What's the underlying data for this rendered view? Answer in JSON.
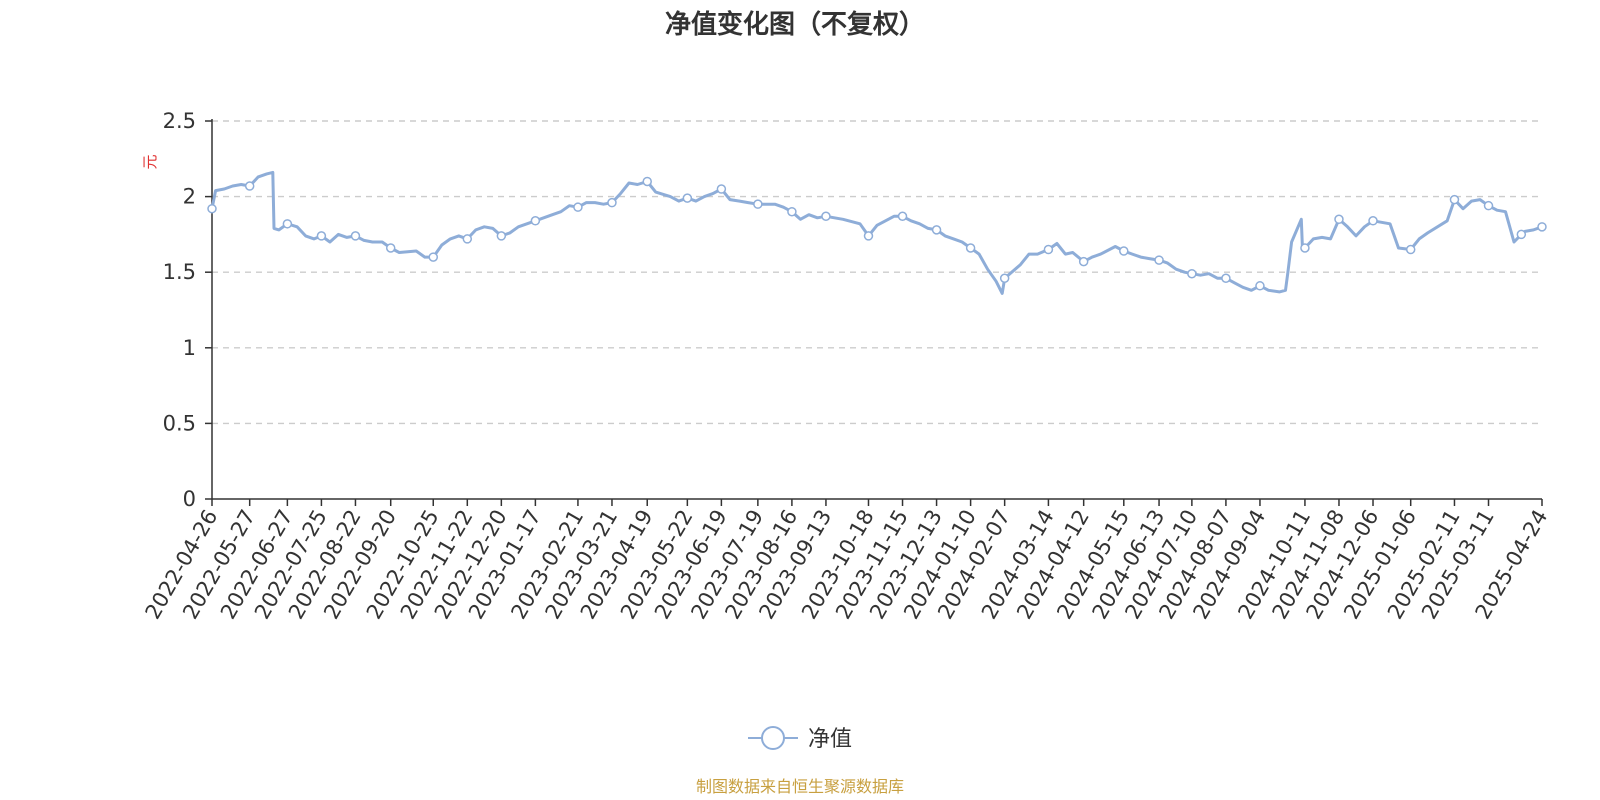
{
  "chart_data": {
    "type": "line",
    "title": "净值变化图（不复权）",
    "ylabel": "元",
    "ylim": [
      0,
      2.5
    ],
    "yticks": [
      0,
      0.5,
      1,
      1.5,
      2,
      2.5
    ],
    "ytick_labels": [
      "0",
      "0.5",
      "1",
      "1.5",
      "2",
      "2.5"
    ],
    "xlim": [
      "2022-04-26",
      "2025-04-24"
    ],
    "xticks": [
      "2022-04-26",
      "2022-05-27",
      "2022-06-27",
      "2022-07-25",
      "2022-08-22",
      "2022-09-20",
      "2022-10-25",
      "2022-11-22",
      "2022-12-20",
      "2023-01-17",
      "2023-02-21",
      "2023-03-21",
      "2023-04-19",
      "2023-05-22",
      "2023-06-19",
      "2023-07-19",
      "2023-08-16",
      "2023-09-13",
      "2023-10-18",
      "2023-11-15",
      "2023-12-13",
      "2024-01-10",
      "2024-02-07",
      "2024-03-14",
      "2024-04-12",
      "2024-05-15",
      "2024-06-13",
      "2024-07-10",
      "2024-08-07",
      "2024-09-04",
      "2024-10-11",
      "2024-11-08",
      "2024-12-06",
      "2025-01-06",
      "2025-02-11",
      "2025-03-11",
      "2025-04-24"
    ],
    "grid": true,
    "legend_position": "bottom-center",
    "series": [
      {
        "name": "净值",
        "color": "#8eadd8",
        "x": [
          "2022-04-26",
          "2022-04-29",
          "2022-05-06",
          "2022-05-13",
          "2022-05-20",
          "2022-05-27",
          "2022-06-03",
          "2022-06-10",
          "2022-06-15",
          "2022-06-16",
          "2022-06-20",
          "2022-06-27",
          "2022-07-05",
          "2022-07-12",
          "2022-07-19",
          "2022-07-25",
          "2022-08-01",
          "2022-08-08",
          "2022-08-15",
          "2022-08-22",
          "2022-08-29",
          "2022-09-05",
          "2022-09-13",
          "2022-09-20",
          "2022-09-27",
          "2022-10-11",
          "2022-10-18",
          "2022-10-25",
          "2022-11-01",
          "2022-11-08",
          "2022-11-15",
          "2022-11-22",
          "2022-11-29",
          "2022-12-06",
          "2022-12-13",
          "2022-12-20",
          "2022-12-27",
          "2023-01-03",
          "2023-01-10",
          "2023-01-17",
          "2023-01-31",
          "2023-02-07",
          "2023-02-14",
          "2023-02-21",
          "2023-02-28",
          "2023-03-07",
          "2023-03-14",
          "2023-03-21",
          "2023-03-28",
          "2023-04-04",
          "2023-04-11",
          "2023-04-19",
          "2023-04-26",
          "2023-05-08",
          "2023-05-15",
          "2023-05-22",
          "2023-05-29",
          "2023-06-05",
          "2023-06-12",
          "2023-06-19",
          "2023-06-26",
          "2023-07-04",
          "2023-07-11",
          "2023-07-19",
          "2023-07-26",
          "2023-08-02",
          "2023-08-09",
          "2023-08-16",
          "2023-08-23",
          "2023-08-30",
          "2023-09-06",
          "2023-09-13",
          "2023-09-20",
          "2023-09-27",
          "2023-10-11",
          "2023-10-18",
          "2023-10-25",
          "2023-11-01",
          "2023-11-08",
          "2023-11-15",
          "2023-11-22",
          "2023-11-29",
          "2023-12-06",
          "2023-12-13",
          "2023-12-20",
          "2023-12-27",
          "2024-01-03",
          "2024-01-10",
          "2024-01-17",
          "2024-01-24",
          "2024-01-31",
          "2024-02-05",
          "2024-02-07",
          "2024-02-20",
          "2024-02-27",
          "2024-03-05",
          "2024-03-14",
          "2024-03-21",
          "2024-03-28",
          "2024-04-03",
          "2024-04-12",
          "2024-04-19",
          "2024-04-26",
          "2024-05-08",
          "2024-05-15",
          "2024-05-22",
          "2024-05-29",
          "2024-06-05",
          "2024-06-13",
          "2024-06-20",
          "2024-06-27",
          "2024-07-04",
          "2024-07-10",
          "2024-07-17",
          "2024-07-24",
          "2024-07-31",
          "2024-08-07",
          "2024-08-14",
          "2024-08-21",
          "2024-08-28",
          "2024-09-04",
          "2024-09-11",
          "2024-09-20",
          "2024-09-25",
          "2024-09-27",
          "2024-09-30",
          "2024-10-08",
          "2024-10-09",
          "2024-10-11",
          "2024-10-18",
          "2024-10-25",
          "2024-11-01",
          "2024-11-08",
          "2024-11-15",
          "2024-11-22",
          "2024-11-29",
          "2024-12-06",
          "2024-12-13",
          "2024-12-20",
          "2024-12-27",
          "2025-01-06",
          "2025-01-13",
          "2025-01-20",
          "2025-02-05",
          "2025-02-11",
          "2025-02-18",
          "2025-02-25",
          "2025-03-04",
          "2025-03-11",
          "2025-03-18",
          "2025-03-25",
          "2025-04-01",
          "2025-04-07",
          "2025-04-10",
          "2025-04-17",
          "2025-04-24"
        ],
        "values": [
          1.92,
          2.04,
          2.05,
          2.07,
          2.08,
          2.07,
          2.13,
          2.15,
          2.16,
          1.79,
          1.78,
          1.82,
          1.8,
          1.74,
          1.72,
          1.74,
          1.7,
          1.75,
          1.73,
          1.74,
          1.71,
          1.7,
          1.7,
          1.66,
          1.63,
          1.64,
          1.6,
          1.6,
          1.68,
          1.72,
          1.74,
          1.72,
          1.78,
          1.8,
          1.79,
          1.74,
          1.76,
          1.8,
          1.82,
          1.84,
          1.88,
          1.9,
          1.94,
          1.93,
          1.96,
          1.96,
          1.95,
          1.96,
          2.02,
          2.09,
          2.08,
          2.1,
          2.03,
          2.0,
          1.97,
          1.99,
          1.97,
          2.0,
          2.02,
          2.05,
          1.98,
          1.97,
          1.96,
          1.95,
          1.95,
          1.95,
          1.93,
          1.9,
          1.85,
          1.88,
          1.86,
          1.87,
          1.86,
          1.85,
          1.82,
          1.74,
          1.81,
          1.84,
          1.87,
          1.87,
          1.84,
          1.82,
          1.79,
          1.78,
          1.74,
          1.72,
          1.7,
          1.66,
          1.62,
          1.52,
          1.44,
          1.36,
          1.46,
          1.55,
          1.62,
          1.62,
          1.65,
          1.69,
          1.62,
          1.63,
          1.57,
          1.6,
          1.62,
          1.67,
          1.64,
          1.62,
          1.6,
          1.59,
          1.58,
          1.56,
          1.52,
          1.5,
          1.49,
          1.48,
          1.49,
          1.46,
          1.46,
          1.43,
          1.4,
          1.38,
          1.41,
          1.38,
          1.37,
          1.38,
          1.5,
          1.7,
          1.85,
          1.65,
          1.66,
          1.72,
          1.73,
          1.72,
          1.85,
          1.8,
          1.74,
          1.8,
          1.84,
          1.83,
          1.82,
          1.66,
          1.65,
          1.72,
          1.76,
          1.84,
          1.98,
          1.92,
          1.97,
          1.98,
          1.94,
          1.91,
          1.9,
          1.7,
          1.75,
          1.77,
          1.78,
          1.8
        ]
      }
    ],
    "marker_dates": [
      "2022-04-26",
      "2022-05-27",
      "2022-06-27",
      "2022-07-25",
      "2022-08-22",
      "2022-09-20",
      "2022-10-25",
      "2022-11-22",
      "2022-12-20",
      "2023-01-17",
      "2023-02-21",
      "2023-03-21",
      "2023-04-19",
      "2023-05-22",
      "2023-06-19",
      "2023-07-19",
      "2023-08-16",
      "2023-09-13",
      "2023-10-18",
      "2023-11-15",
      "2023-12-13",
      "2024-01-10",
      "2024-02-07",
      "2024-03-14",
      "2024-04-12",
      "2024-05-15",
      "2024-06-13",
      "2024-07-10",
      "2024-08-07",
      "2024-09-04",
      "2024-10-11",
      "2024-11-08",
      "2024-12-06",
      "2025-01-06",
      "2025-02-11",
      "2025-03-11",
      "2025-04-07",
      "2025-04-24"
    ]
  },
  "colors": {
    "line": "#8eadd8",
    "axis": "#333333",
    "grid": "#cccccc",
    "ylabel": "#e03030",
    "source": "#c8a040"
  },
  "legend": {
    "label": "净值"
  },
  "source_text": "制图数据来自恒生聚源数据库"
}
